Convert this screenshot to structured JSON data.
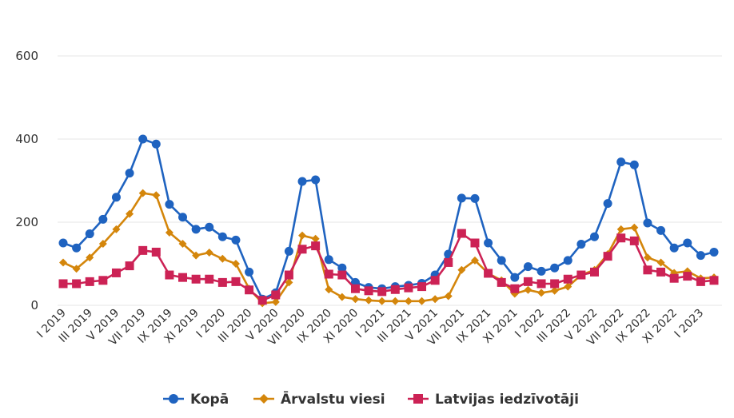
{
  "chart_data": {
    "type": "line",
    "title": "",
    "xlabel": "",
    "ylabel": "",
    "ylim": [
      0,
      600
    ],
    "yticks": [
      0,
      200,
      400,
      600
    ],
    "grid": true,
    "legend_position": "bottom",
    "x": [
      "I 2019",
      "II 2019",
      "III 2019",
      "IV 2019",
      "V 2019",
      "VI 2019",
      "VII 2019",
      "VIII 2019",
      "IX 2019",
      "X 2019",
      "XI 2019",
      "XII 2019",
      "I 2020",
      "II 2020",
      "III 2020",
      "IV 2020",
      "V 2020",
      "VI 2020",
      "VII 2020",
      "VIII 2020",
      "IX 2020",
      "X 2020",
      "XI 2020",
      "XII 2020",
      "I 2021",
      "II 2021",
      "III 2021",
      "IV 2021",
      "V 2021",
      "VI 2021",
      "VII 2021",
      "VIII 2021",
      "IX 2021",
      "X 2021",
      "XI 2021",
      "XII 2021",
      "I 2022",
      "II 2022",
      "III 2022",
      "IV 2022",
      "V 2022",
      "VI 2022",
      "VII 2022",
      "VIII 2022",
      "IX 2022",
      "X 2022",
      "XI 2022",
      "XII 2022",
      "I 2023",
      "II 2023"
    ],
    "x_tick_labels": [
      "I 2019",
      "III 2019",
      "V 2019",
      "VII 2019",
      "IX 2019",
      "XI 2019",
      "I 2020",
      "III 2020",
      "V 2020",
      "VII 2020",
      "IX 2020",
      "XI 2020",
      "I 2021",
      "III 2021",
      "V 2021",
      "VII 2021",
      "IX 2021",
      "XI 2021",
      "I 2022",
      "III 2022",
      "V 2022",
      "VII 2022",
      "IX 2022",
      "XI 2022",
      "I 2023"
    ],
    "series": [
      {
        "name": "Kopā",
        "color": "#1f63c0",
        "marker": "circle",
        "values": [
          150,
          138,
          172,
          207,
          260,
          318,
          400,
          388,
          243,
          212,
          183,
          188,
          165,
          157,
          80,
          15,
          30,
          130,
          298,
          302,
          110,
          90,
          55,
          43,
          40,
          45,
          48,
          53,
          73,
          123,
          258,
          257,
          150,
          108,
          67,
          93,
          82,
          90,
          108,
          147,
          165,
          245,
          345,
          338,
          198,
          180,
          138,
          150,
          120,
          128
        ]
      },
      {
        "name": "Ārvalstu viesi",
        "color": "#d4860b",
        "marker": "diamond",
        "values": [
          103,
          88,
          115,
          148,
          183,
          220,
          270,
          265,
          175,
          148,
          120,
          127,
          112,
          100,
          40,
          5,
          8,
          55,
          168,
          160,
          38,
          20,
          15,
          12,
          10,
          10,
          10,
          10,
          15,
          22,
          85,
          108,
          77,
          60,
          28,
          37,
          30,
          35,
          45,
          73,
          85,
          123,
          183,
          187,
          115,
          103,
          78,
          82,
          65,
          67
        ]
      },
      {
        "name": "Latvijas iedzīvotāji",
        "color": "#cc2255",
        "marker": "square",
        "values": [
          52,
          52,
          57,
          60,
          78,
          95,
          132,
          128,
          73,
          67,
          63,
          63,
          55,
          57,
          37,
          12,
          25,
          73,
          135,
          143,
          75,
          73,
          40,
          35,
          33,
          38,
          42,
          45,
          60,
          103,
          173,
          150,
          77,
          55,
          40,
          57,
          52,
          52,
          63,
          73,
          80,
          118,
          162,
          155,
          85,
          80,
          65,
          70,
          57,
          60
        ]
      }
    ]
  }
}
